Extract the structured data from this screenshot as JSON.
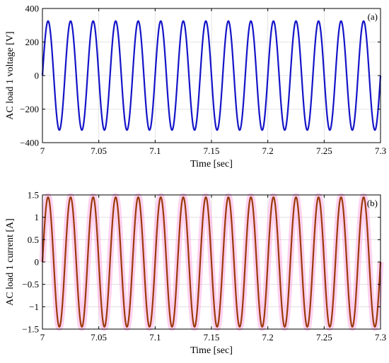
{
  "chart_data": [
    {
      "type": "line",
      "panel_label": "(a)",
      "xlabel": "Time [sec]",
      "ylabel": "AC load 1 voltage [V]",
      "xlim": [
        7,
        7.3
      ],
      "ylim": [
        -400,
        400
      ],
      "xticks": [
        7,
        7.05,
        7.1,
        7.15,
        7.2,
        7.25,
        7.3
      ],
      "yticks": [
        -400,
        -200,
        0,
        200,
        400
      ],
      "xtick_labels": [
        "7",
        "7.05",
        "7.1",
        "7.15",
        "7.2",
        "7.25",
        "7.3"
      ],
      "ytick_labels": [
        "−400",
        "−200",
        "0",
        "200",
        "400"
      ],
      "grid": true,
      "series": [
        {
          "amplitude": 325,
          "frequency": 50,
          "start_time": 7,
          "end_time": 7.3,
          "phase_deg": 0,
          "color": "#1414c8"
        }
      ]
    },
    {
      "type": "line",
      "panel_label": "(b)",
      "xlabel": "Time [sec]",
      "ylabel": "AC load 1 current [A]",
      "xlim": [
        7,
        7.3
      ],
      "ylim": [
        -1.5,
        1.5
      ],
      "xticks": [
        7,
        7.05,
        7.1,
        7.15,
        7.2,
        7.25,
        7.3
      ],
      "yticks": [
        -1.5,
        -1,
        -0.5,
        0,
        0.5,
        1,
        1.5
      ],
      "xtick_labels": [
        "7",
        "7.05",
        "7.1",
        "7.15",
        "7.2",
        "7.25",
        "7.3"
      ],
      "ytick_labels": [
        "−1.5",
        "−1",
        "−0.5",
        "0",
        "0.5",
        "1",
        "1.5"
      ],
      "grid": true,
      "series": [
        {
          "amplitude": 1.47,
          "frequency": 50,
          "start_time": 7,
          "end_time": 7.3,
          "phase_deg": 0,
          "color": "#ff99dd",
          "band": true
        },
        {
          "amplitude": 1.45,
          "frequency": 50,
          "start_time": 7,
          "end_time": 7.3,
          "phase_deg": 0,
          "color": "#9a3a0a"
        }
      ]
    }
  ]
}
